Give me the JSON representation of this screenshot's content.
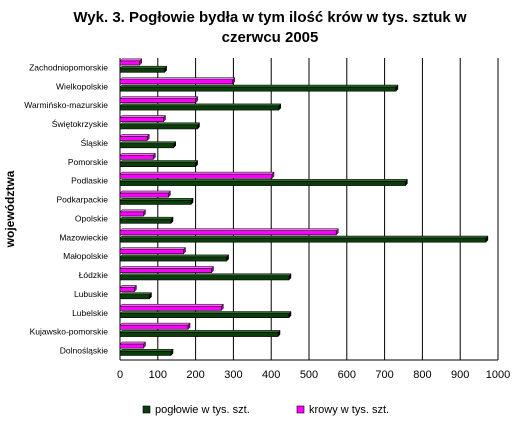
{
  "chart_data": {
    "type": "bar",
    "orientation": "horizontal",
    "title": "Wyk. 3. Pogłowie bydła w tym ilość krów w tys. sztuk w czerwcu 2005",
    "ylabel": "województwa",
    "xlabel": "",
    "categories": [
      "Zachodniopomorskie",
      "Wielkopolskie",
      "Warmińsko-mazurskie",
      "Świętokrzyskie",
      "Śląskie",
      "Pomorskie",
      "Podlaskie",
      "Podkarpackie",
      "Opolskie",
      "Mazowieckie",
      "Małopolskie",
      "Łódzkie",
      "Lubuskie",
      "Lubelskie",
      "Kujawsko-pomorskie",
      "Dolnośląskie"
    ],
    "series": [
      {
        "name": "pogłowie w tys. szt.",
        "color": "#0b3d0b",
        "values": [
          118,
          730,
          420,
          205,
          142,
          200,
          755,
          188,
          135,
          968,
          282,
          447,
          78,
          447,
          418,
          135
        ]
      },
      {
        "name": "krowy w tys. szt.",
        "color": "#ff00ff",
        "values": [
          52,
          298,
          200,
          115,
          72,
          88,
          402,
          128,
          62,
          572,
          168,
          242,
          38,
          268,
          180,
          62
        ]
      }
    ],
    "xlim": [
      0,
      1000
    ],
    "xticks": [
      "0",
      "100",
      "200",
      "300",
      "400",
      "500",
      "600",
      "700",
      "800",
      "900",
      "1000"
    ],
    "grid": true,
    "legend_position": "bottom"
  }
}
